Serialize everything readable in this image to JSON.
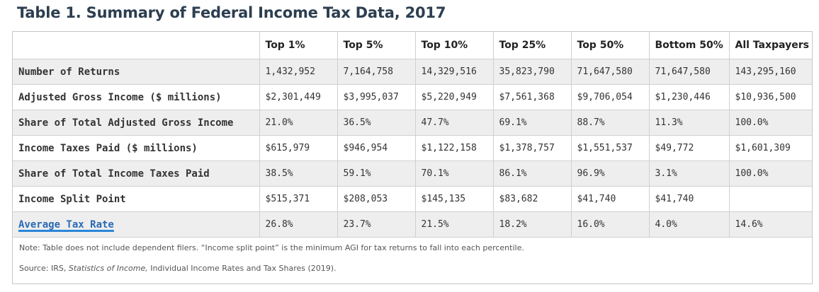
{
  "title": "Table 1. Summary of Federal Income Tax Data, 2017",
  "columns": [
    "",
    "Top 1%",
    "Top 5%",
    "Top 10%",
    "Top 25%",
    "Top 50%",
    "Bottom 50%",
    "All Taxpayers"
  ],
  "rows": [
    {
      "label": "Number of Returns",
      "values": [
        "1,432,952",
        "7,164,758",
        "14,329,516",
        "35,823,790",
        "71,647,580",
        "71,647,580",
        "143,295,160"
      ]
    },
    {
      "label": "Adjusted Gross Income ($ millions)",
      "values": [
        "$2,301,449",
        "$3,995,037",
        "$5,220,949",
        "$7,561,368",
        "$9,706,054",
        "$1,230,446",
        "$10,936,500"
      ]
    },
    {
      "label": "Share of Total Adjusted Gross Income",
      "values": [
        "21.0%",
        "36.5%",
        "47.7%",
        "69.1%",
        "88.7%",
        "11.3%",
        "100.0%"
      ]
    },
    {
      "label": "Income Taxes Paid ($ millions)",
      "values": [
        "$615,979",
        "$946,954",
        "$1,122,158",
        "$1,378,757",
        "$1,551,537",
        "$49,772",
        "$1,601,309"
      ]
    },
    {
      "label": "Share of Total Income Taxes Paid",
      "values": [
        "38.5%",
        "59.1%",
        "70.1%",
        "86.1%",
        "96.9%",
        "3.1%",
        "100.0%"
      ]
    },
    {
      "label": "Income Split Point",
      "values": [
        "$515,371",
        "$208,053",
        "$145,135",
        "$83,682",
        "$41,740",
        "$41,740",
        ""
      ]
    },
    {
      "label": "Average Tax Rate",
      "values": [
        "26.8%",
        "23.7%",
        "21.5%",
        "18.2%",
        "16.0%",
        "4.0%",
        "14.6%"
      ]
    }
  ],
  "note": "Note: Table does not include dependent filers. “Income split point” is the minimum AGI for tax returns to fall into each percentile.",
  "source": {
    "prefix": "Source: IRS, ",
    "italic": "Statistics of Income,",
    "suffix": " Individual Income Rates and Tax Shares (2019)."
  }
}
